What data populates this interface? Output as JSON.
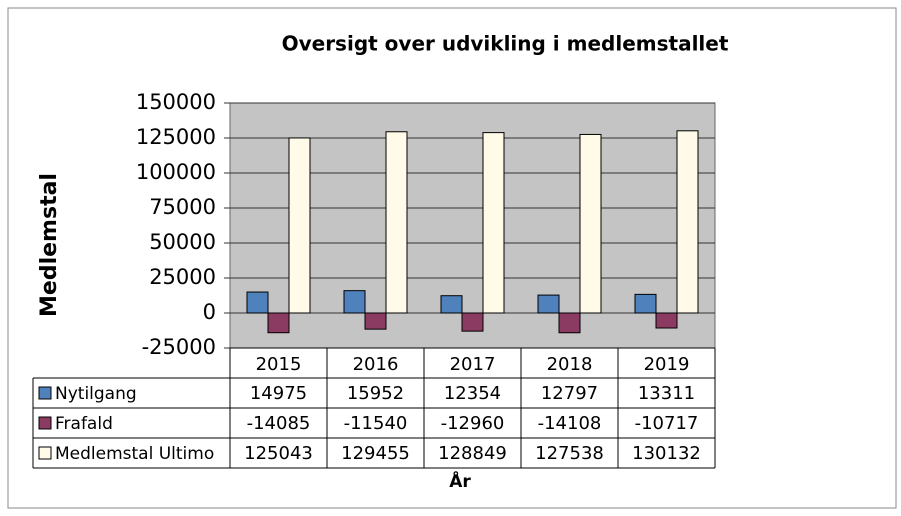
{
  "chart_data": {
    "type": "bar",
    "title": "Oversigt over udvikling i medlemstallet",
    "y_label": "Medlemstal",
    "x_label": "År",
    "categories": [
      "2015",
      "2016",
      "2017",
      "2018",
      "2019"
    ],
    "series": [
      {
        "name": "Nytilgang",
        "color": "#4f81bd",
        "values": [
          14975,
          15952,
          12354,
          12797,
          13311
        ]
      },
      {
        "name": "Frafald",
        "color": "#8b3a62",
        "values": [
          -14085,
          -11540,
          -12960,
          -14108,
          -10717
        ]
      },
      {
        "name": "Medlemstal Ultimo",
        "color": "#fffbe8",
        "values": [
          125043,
          129455,
          128849,
          127538,
          130132
        ]
      }
    ],
    "ylim": [
      -25000,
      150000
    ],
    "yticks": [
      -25000,
      0,
      25000,
      50000,
      75000,
      100000,
      125000,
      150000
    ],
    "grid": true
  }
}
